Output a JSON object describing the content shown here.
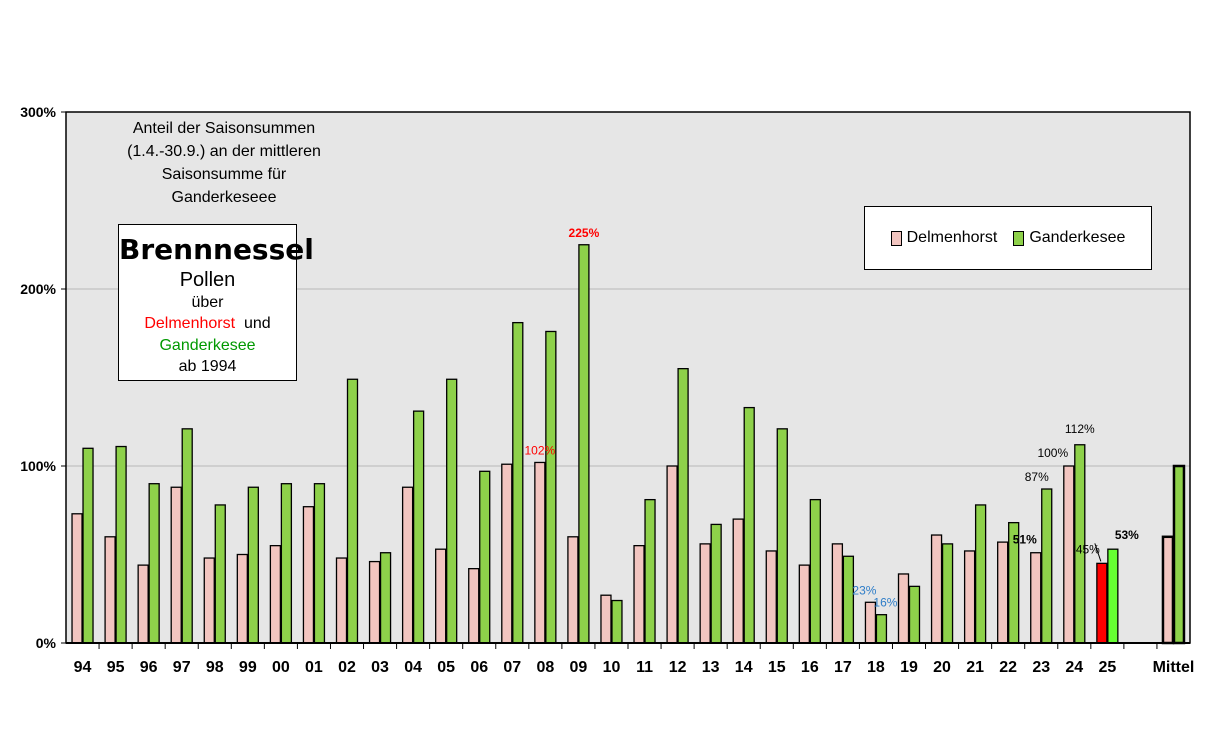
{
  "chart_data": {
    "type": "bar",
    "categories": [
      "94",
      "95",
      "96",
      "97",
      "98",
      "99",
      "00",
      "01",
      "02",
      "03",
      "04",
      "05",
      "06",
      "07",
      "08",
      "09",
      "10",
      "11",
      "12",
      "13",
      "14",
      "15",
      "16",
      "17",
      "18",
      "19",
      "20",
      "21",
      "22",
      "23",
      "24",
      "25",
      "",
      "Mittel"
    ],
    "series": [
      {
        "name": "Delmenhorst",
        "color": "#f2c5c0",
        "values": [
          73,
          60,
          44,
          88,
          48,
          50,
          55,
          77,
          48,
          46,
          88,
          53,
          42,
          101,
          102,
          60,
          27,
          55,
          100,
          56,
          70,
          52,
          44,
          56,
          23,
          39,
          61,
          52,
          57,
          51,
          100,
          45,
          null,
          60
        ]
      },
      {
        "name": "Ganderkesee",
        "color": "#8ed14a",
        "values": [
          110,
          111,
          90,
          121,
          78,
          88,
          90,
          90,
          149,
          51,
          131,
          149,
          97,
          181,
          176,
          225,
          24,
          81,
          155,
          67,
          133,
          121,
          81,
          49,
          16,
          32,
          56,
          78,
          68,
          87,
          112,
          53,
          null,
          100
        ]
      }
    ],
    "highlight": {
      "category": "25",
      "colors": [
        "#ff0000",
        "#66ff33"
      ]
    },
    "mittel_border_color": "#000000",
    "ylim": [
      0,
      300
    ],
    "yticks": [
      {
        "value": 0,
        "label": "0%"
      },
      {
        "value": 100,
        "label": "100%"
      },
      {
        "value": 200,
        "label": "200%"
      },
      {
        "value": 300,
        "label": "300%"
      }
    ],
    "grid": true,
    "plot_background": "#e6e6e6",
    "legend_position": "top-right",
    "annotations": [
      {
        "text": "225%",
        "category": "09",
        "series": 1,
        "color": "#ff0000",
        "bold": true
      },
      {
        "text": "102%",
        "category": "08",
        "series": 0,
        "color": "#ff0000",
        "bold": false
      },
      {
        "text": "23%",
        "category": "18",
        "series": 0,
        "color": "#2e7dc8",
        "bold": false
      },
      {
        "text": "16%",
        "category": "18",
        "series": 1,
        "color": "#2e7dc8",
        "bold": false
      },
      {
        "text": "51%",
        "category": "23",
        "series": 0,
        "color": "#000000",
        "bold": true
      },
      {
        "text": "87%",
        "category": "23",
        "series": 1,
        "color": "#000000",
        "bold": false
      },
      {
        "text": "100%",
        "category": "24",
        "series": 0,
        "color": "#000000",
        "bold": false
      },
      {
        "text": "112%",
        "category": "24",
        "series": 1,
        "color": "#000000",
        "bold": false
      },
      {
        "text": "45%",
        "category": "25",
        "series": 0,
        "color": "#000000",
        "bold": false
      },
      {
        "text": "53%",
        "category": "25",
        "series": 1,
        "color": "#000000",
        "bold": true
      }
    ]
  },
  "description": {
    "line1": "Anteil der Saisonsummen",
    "line2": "(1.4.-30.9.) an der mittleren",
    "line3": "Saisonsumme für",
    "line4": "Ganderkeseee"
  },
  "title_box": {
    "title": "Brennnessel",
    "line2": "Pollen",
    "line3": "über",
    "station1": "Delmenhorst",
    "connector": "und",
    "station2": "Ganderkesee",
    "since": "ab 1994",
    "station1_color": "#ff0000",
    "station2_color": "#009900"
  },
  "legend": {
    "item1": "Delmenhorst",
    "item2": "Ganderkesee"
  }
}
